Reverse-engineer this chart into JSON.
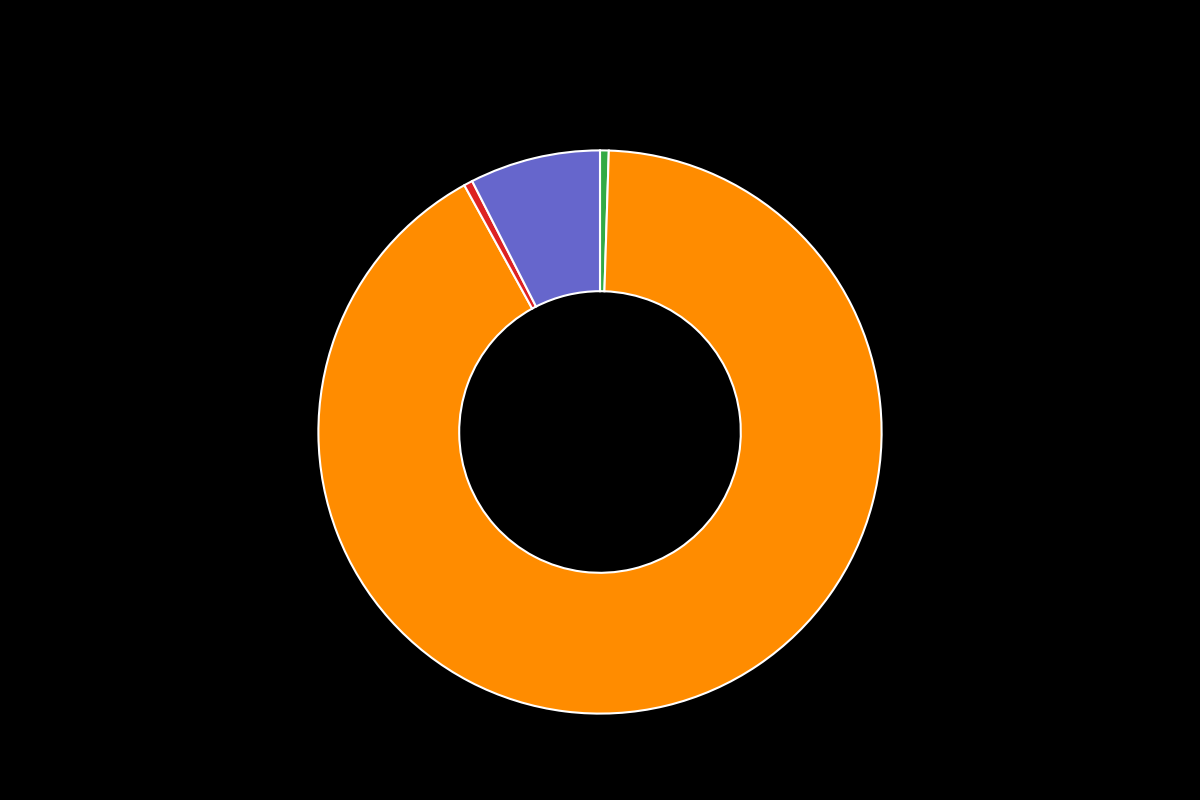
{
  "slices": [
    {
      "label": "",
      "value": 0.5,
      "color": "#33aa44"
    },
    {
      "label": "",
      "value": 91.5,
      "color": "#ff8c00"
    },
    {
      "label": "",
      "value": 0.5,
      "color": "#dd2222"
    },
    {
      "label": "",
      "value": 7.5,
      "color": "#6666cc"
    }
  ],
  "background_color": "#000000",
  "wedge_edge_color": "#ffffff",
  "wedge_linewidth": 1.5,
  "donut_width": 0.5,
  "legend_colors": [
    "#33aa44",
    "#ff8c00",
    "#dd2222",
    "#6666cc"
  ],
  "legend_ncol": 4,
  "start_angle": 90
}
